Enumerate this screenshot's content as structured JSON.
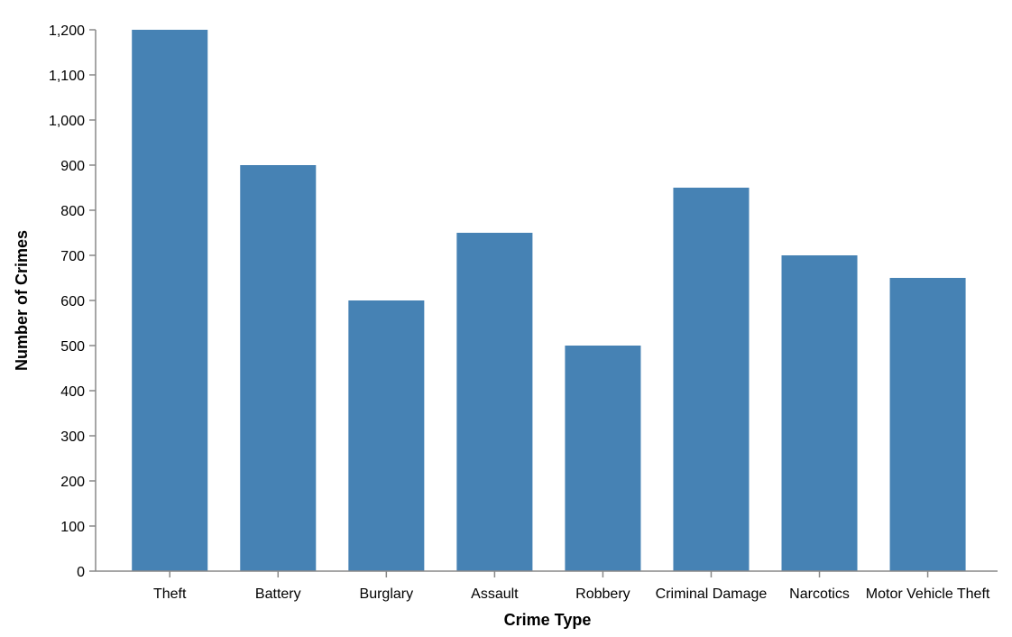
{
  "chart_data": {
    "type": "bar",
    "categories": [
      "Theft",
      "Battery",
      "Burglary",
      "Assault",
      "Robbery",
      "Criminal Damage",
      "Narcotics",
      "Motor Vehicle Theft"
    ],
    "values": [
      1200,
      900,
      600,
      750,
      500,
      850,
      700,
      650
    ],
    "xlabel": "Crime Type",
    "ylabel": "Number of Crimes",
    "ylim": [
      0,
      1200
    ],
    "yticks": [
      0,
      100,
      200,
      300,
      400,
      500,
      600,
      700,
      800,
      900,
      1000,
      1100,
      1200
    ],
    "ytick_labels": [
      "0",
      "100",
      "200",
      "300",
      "400",
      "500",
      "600",
      "700",
      "800",
      "900",
      "1,000",
      "1,100",
      "1,200"
    ],
    "bar_color": "#4682b4",
    "grid": false,
    "legend": "none"
  }
}
